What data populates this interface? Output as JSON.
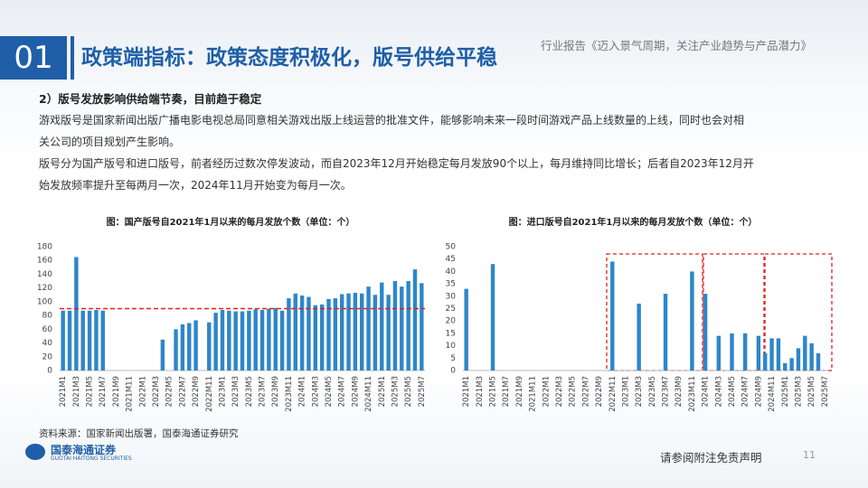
{
  "header": {
    "number": "01",
    "title": "政策端指标：政策态度积极化，版号供给平稳",
    "report": "行业报告《迈入景气周期，关注产业趋势与产品潜力》"
  },
  "subtitle": "2）版号发放影响供给端节奏，目前趋于稳定",
  "paragraphs": [
    "游戏版号是国家新闻出版广播电影电视总局同意相关游戏出版上线运营的批准文件，能够影响未来一段时间游戏产品上线数量的上线，同时也会对相",
    "关公司的项目规划产生影响。",
    "版号分为国产版号和进口版号，前者经历过数次停发波动，而自2023年12月开始稳定每月发放90个以上，每月维持同比增长；后者自2023年12月开",
    "始发放频率提升至每两月一次，2024年11月开始变为每月一次。"
  ],
  "source": "资料来源：国家新闻出版署，国泰海通证券研究",
  "logo": {
    "name": "国泰海通证券",
    "english": "GUOTAI HAITONG SECURITIES"
  },
  "footer": {
    "disclaimer": "请参阅附注免责声明",
    "page": "11"
  },
  "chart_data": [
    {
      "type": "bar",
      "title": "图：国产版号自2021年1月以来的每月发放个数（单位：个）",
      "color": "#2e86c8",
      "categories": [
        "2021M1",
        null,
        "2021M3",
        null,
        "2021M5",
        null,
        "2021M7",
        null,
        "2021M9",
        null,
        "2021M11",
        null,
        "2022M1",
        null,
        "2022M3",
        null,
        "2022M5",
        null,
        "2022M7",
        null,
        "2022M9",
        null,
        "2022M11",
        null,
        "2023M1",
        null,
        "2023M3",
        null,
        "2023M5",
        null,
        "2023M7",
        null,
        "2023M9",
        null,
        "2023M11",
        null,
        "2024M1",
        null,
        "2024M3",
        null,
        "2024M5",
        null,
        "2024M7",
        null,
        "2024M9",
        null,
        "2024M11",
        null,
        "2025M1",
        null,
        "2025M3",
        null,
        "2025M5",
        null,
        "2025M7"
      ],
      "values": [
        87,
        87,
        165,
        87,
        87,
        88,
        87,
        0,
        0,
        0,
        0,
        0,
        0,
        0,
        0,
        45,
        0,
        60,
        67,
        69,
        73,
        0,
        70,
        84,
        88,
        87,
        86,
        86,
        87,
        89,
        88,
        90,
        91,
        87,
        105,
        112,
        109,
        107,
        95,
        96,
        104,
        105,
        111,
        112,
        113,
        112,
        122,
        110,
        128,
        110,
        130,
        122,
        130,
        147,
        127
      ],
      "ylim": [
        0,
        180
      ],
      "yticks": [
        0,
        20,
        40,
        60,
        80,
        100,
        120,
        140,
        160,
        180
      ],
      "reference_line": 90,
      "reference_color": "#e02020"
    },
    {
      "type": "bar",
      "title": "图：进口版号自2021年1月以来的每月发放个数（单位：个）",
      "color": "#2e86c8",
      "categories": [
        "2021M1",
        null,
        "2021M3",
        null,
        "2021M5",
        null,
        "2021M7",
        null,
        "2021M9",
        null,
        "2021M11",
        null,
        "2022M1",
        null,
        "2022M3",
        null,
        "2022M5",
        null,
        "2022M7",
        null,
        "2022M9",
        null,
        "2022M11",
        null,
        "2023M1",
        null,
        "2023M3",
        null,
        "2023M5",
        null,
        "2023M7",
        null,
        "2023M9",
        null,
        "2023M11",
        null,
        "2024M1",
        null,
        "2024M3",
        null,
        "2024M5",
        null,
        "2024M7",
        null,
        "2024M9",
        null,
        "2024M11",
        null,
        "2025M1",
        null,
        "2025M3",
        null,
        "2025M5",
        null,
        "2025M7"
      ],
      "values": [
        33,
        0,
        0,
        0,
        43,
        0,
        0,
        0,
        0,
        0,
        0,
        0,
        0,
        0,
        0,
        0,
        0,
        0,
        0,
        0,
        0,
        0,
        44,
        0,
        0,
        0,
        27,
        0,
        0,
        0,
        31,
        0,
        0,
        0,
        40,
        0,
        31,
        0,
        14,
        0,
        15,
        0,
        15,
        0,
        14,
        7,
        13,
        13,
        3,
        5,
        9,
        14,
        11,
        7,
        0
      ],
      "ylim": [
        0,
        50
      ],
      "yticks": [
        0,
        5,
        10,
        15,
        20,
        25,
        30,
        35,
        40,
        45,
        50
      ]
    }
  ]
}
